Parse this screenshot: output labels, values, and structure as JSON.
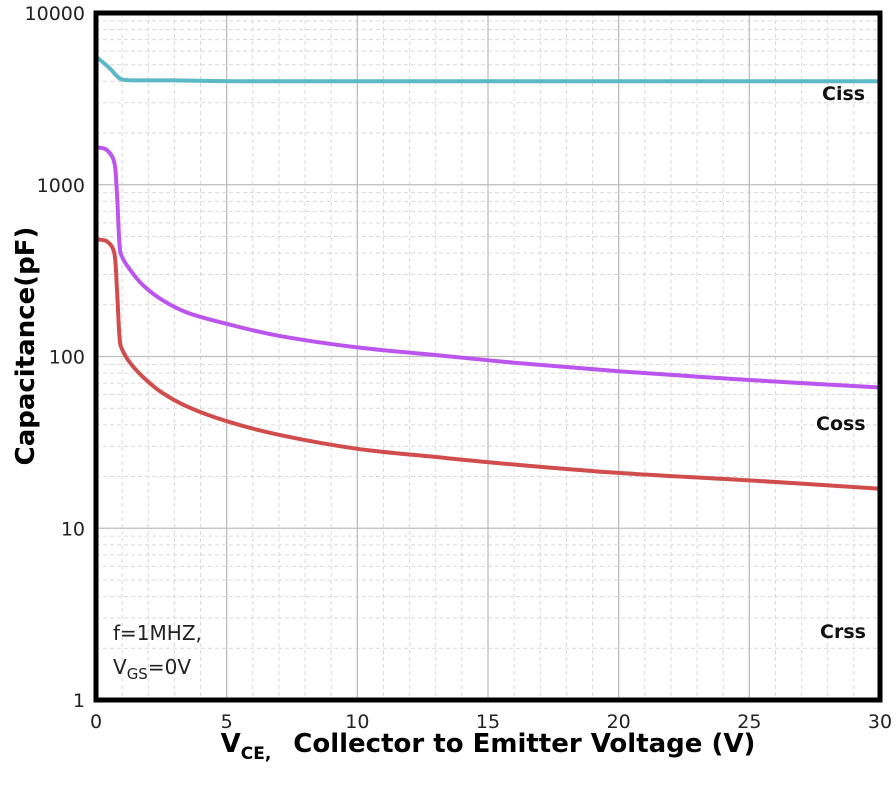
{
  "chart_data": {
    "type": "line",
    "title": "",
    "xlabel_main": "V",
    "xlabel_sub": "CE,",
    "xlabel_rest": "Collector to Emitter Voltage (V)",
    "ylabel": "Capacitance(pF)",
    "xlim": [
      0,
      30
    ],
    "ylim": [
      1,
      10000
    ],
    "yscale": "log",
    "x_ticks": [
      0,
      5,
      10,
      15,
      20,
      25,
      30
    ],
    "y_ticks": [
      1,
      10,
      100,
      1000,
      10000
    ],
    "y_tick_labels": [
      "1",
      "10",
      "100",
      "1000",
      "10000"
    ],
    "grid": true,
    "annotation": {
      "line1": "f=1MHZ,",
      "line2_main": "V",
      "line2_sub": "GS",
      "line2_rest": "=0V"
    },
    "series": [
      {
        "name": "Ciss",
        "color": "#5bb8c6",
        "x": [
          0.05,
          0.5,
          0.8,
          1.0,
          1.5,
          3,
          6,
          10,
          15,
          20,
          25,
          30
        ],
        "y": [
          5500,
          4800,
          4300,
          4100,
          4050,
          4050,
          4000,
          4000,
          4000,
          4000,
          4000,
          4000
        ]
      },
      {
        "name": "Coss",
        "color": "#bb55ee",
        "x": [
          0.05,
          0.4,
          0.7,
          0.8,
          0.9,
          1.0,
          1.3,
          1.8,
          2.5,
          3.5,
          5,
          7,
          10,
          13,
          16,
          20,
          25,
          30
        ],
        "y": [
          1650,
          1600,
          1350,
          900,
          450,
          380,
          320,
          260,
          215,
          180,
          155,
          132,
          113,
          102,
          92,
          82,
          73,
          66
        ]
      },
      {
        "name": "Crss",
        "color": "#d14d4d",
        "x": [
          0.05,
          0.4,
          0.7,
          0.8,
          0.9,
          1.0,
          1.3,
          1.8,
          2.5,
          3.5,
          5,
          7,
          10,
          13,
          16,
          20,
          25,
          30
        ],
        "y": [
          480,
          470,
          400,
          250,
          130,
          110,
          92,
          76,
          62,
          51,
          42,
          35,
          29,
          26,
          23.5,
          21,
          19,
          17
        ]
      }
    ],
    "series_labels": [
      "Ciss",
      "Coss",
      "Crss"
    ]
  }
}
